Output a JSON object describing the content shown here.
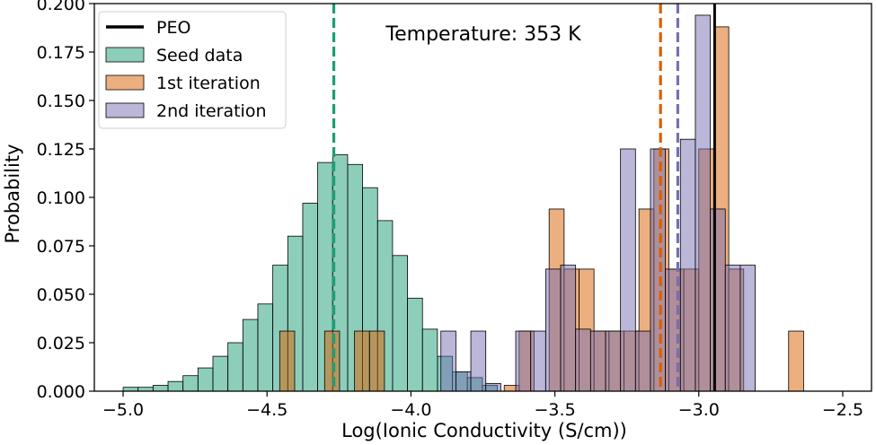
{
  "chart_data": {
    "type": "bar",
    "title": "",
    "annotation": "Temperature: 353 K",
    "xlabel": "Log(Ionic Conductivity (S/cm))",
    "ylabel": "Probability",
    "xlim": [
      -5.1,
      -2.4
    ],
    "ylim": [
      0,
      0.2
    ],
    "x_ticks": [
      -5.0,
      -4.5,
      -4.0,
      -3.5,
      -3.0,
      -2.5
    ],
    "x_tick_labels": [
      "−5.0",
      "−4.5",
      "−4.0",
      "−3.5",
      "−3.0",
      "−2.5"
    ],
    "y_ticks": [
      0.0,
      0.025,
      0.05,
      0.075,
      0.1,
      0.125,
      0.15,
      0.175,
      0.2
    ],
    "y_tick_labels": [
      "0.000",
      "0.025",
      "0.050",
      "0.075",
      "0.100",
      "0.125",
      "0.150",
      "0.175",
      "0.200"
    ],
    "legend_position": "top-left",
    "legend": [
      {
        "name": "PEO",
        "kind": "line",
        "color": "#000000"
      },
      {
        "name": "Seed data",
        "kind": "patch",
        "color": "#1b9e77"
      },
      {
        "name": "1st iteration",
        "kind": "patch",
        "color": "#d95f02"
      },
      {
        "name": "2nd iteration",
        "kind": "patch",
        "color": "#7570b3"
      }
    ],
    "series": [
      {
        "name": "Seed data",
        "color": "#1b9e77",
        "opacity": 0.5,
        "bins": [
          -5.0,
          -4.948,
          -4.896,
          -4.844,
          -4.792,
          -4.74,
          -4.688,
          -4.636,
          -4.584,
          -4.532,
          -4.48,
          -4.428,
          -4.376,
          -4.324,
          -4.272,
          -4.22,
          -4.168,
          -4.116,
          -4.064,
          -4.012,
          -3.96,
          -3.908,
          -3.856,
          -3.804,
          -3.752,
          -3.7
        ],
        "values": [
          0.002,
          0.002,
          0.003,
          0.005,
          0.008,
          0.012,
          0.018,
          0.025,
          0.037,
          0.045,
          0.065,
          0.08,
          0.097,
          0.118,
          0.122,
          0.117,
          0.105,
          0.088,
          0.07,
          0.048,
          0.032,
          0.018,
          0.01,
          0.007,
          0.003
        ]
      },
      {
        "name": "1st iteration",
        "color": "#d95f02",
        "opacity": 0.5,
        "bins": [
          -4.456,
          -4.404,
          -4.352,
          -4.3,
          -4.248,
          -4.196,
          -4.144,
          -4.092,
          -4.04,
          -3.988,
          -3.936,
          -3.884,
          -3.832,
          -3.78,
          -3.728,
          -3.676,
          -3.624,
          -3.572,
          -3.52,
          -3.468,
          -3.416,
          -3.364,
          -3.312,
          -3.26,
          -3.208,
          -3.156,
          -3.104,
          -3.052,
          -3.0,
          -2.948,
          -2.896,
          -2.844,
          -2.792,
          -2.74,
          -2.688,
          -2.636
        ],
        "values": [
          0.031,
          0,
          0,
          0.031,
          0,
          0.031,
          0.031,
          0,
          0,
          0,
          0,
          0,
          0,
          0,
          0,
          0.003,
          0.031,
          0,
          0.094,
          0.063,
          0.063,
          0.031,
          0.031,
          0.031,
          0.094,
          0.125,
          0.063,
          0.063,
          0.125,
          0.188,
          0.063,
          0,
          0,
          0,
          0.031
        ]
      },
      {
        "name": "2nd iteration",
        "color": "#7570b3",
        "opacity": 0.5,
        "bins": [
          -3.896,
          -3.844,
          -3.792,
          -3.74,
          -3.688,
          -3.636,
          -3.584,
          -3.532,
          -3.48,
          -3.428,
          -3.376,
          -3.324,
          -3.272,
          -3.22,
          -3.168,
          -3.116,
          -3.064,
          -3.012,
          -2.96,
          -2.908,
          -2.856,
          -2.804,
          -2.752
        ],
        "values": [
          0.031,
          0.01,
          0.031,
          0.004,
          0,
          0.031,
          0.031,
          0.063,
          0.065,
          0.032,
          0.031,
          0.031,
          0.125,
          0.031,
          0.125,
          0.063,
          0.13,
          0.194,
          0.094,
          0.065,
          0.065,
          0.0
        ]
      }
    ],
    "vlines": [
      {
        "x": -4.268,
        "color": "#1b9e77",
        "style": "dashed"
      },
      {
        "x": -3.133,
        "color": "#d95f02",
        "style": "dashed"
      },
      {
        "x": -3.073,
        "color": "#7570b3",
        "style": "dashed"
      },
      {
        "x": -2.945,
        "color": "#000000",
        "style": "solid"
      }
    ]
  }
}
